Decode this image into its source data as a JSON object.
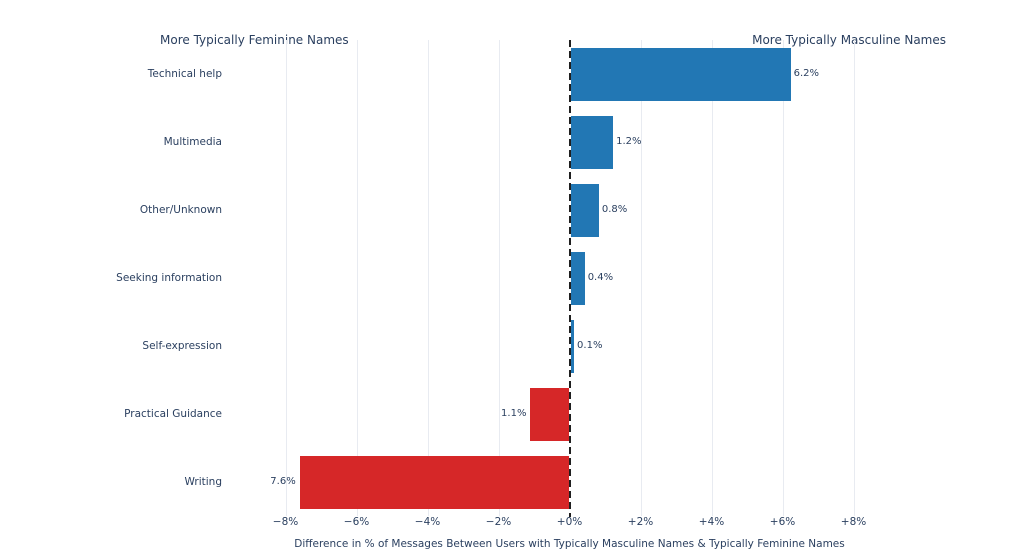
{
  "chart_data": {
    "type": "bar",
    "orientation": "horizontal",
    "categories": [
      "Technical help",
      "Multimedia",
      "Other/Unknown",
      "Seeking information",
      "Self-expression",
      "Practical Guidance",
      "Writing"
    ],
    "values": [
      6.2,
      1.2,
      0.8,
      0.4,
      0.1,
      -1.1,
      -7.6
    ],
    "value_labels": [
      "6.2%",
      "1.2%",
      "0.8%",
      "0.4%",
      "0.1%",
      "1.1%",
      "7.6%"
    ],
    "title": "",
    "xlabel": "Difference in % of Messages Between Users with Typically Masculine Names & Typically Feminine Names",
    "ylabel": "",
    "xlim": [
      -9,
      9
    ],
    "xticks": [
      -8,
      -6,
      -4,
      -2,
      0,
      2,
      4,
      6,
      8
    ],
    "xtick_labels": [
      "−8%",
      "−6%",
      "−4%",
      "−2%",
      "+0%",
      "+2%",
      "+4%",
      "+6%",
      "+8%"
    ],
    "annotations": {
      "left": "More Typically Feminine Names",
      "right": "More Typically Masculine Names"
    },
    "legend_position": "none",
    "grid": true,
    "zero_line": "dashed",
    "colors": {
      "positive_bar": "#2277b4",
      "negative_bar": "#d62728",
      "grid": "#e8ebf1",
      "zero_line": "#1f1f1f",
      "text": "#2a3f5f"
    }
  }
}
